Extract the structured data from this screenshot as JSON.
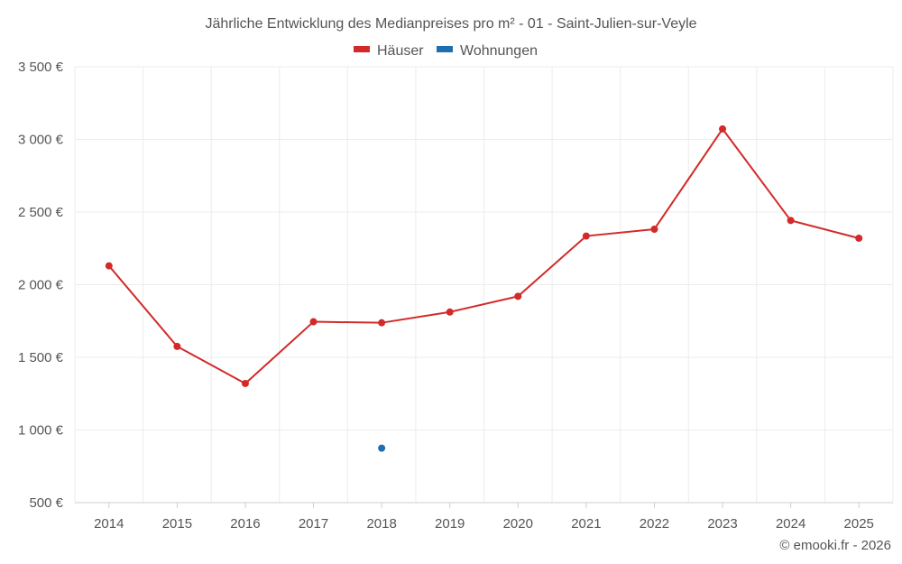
{
  "chart_data": {
    "type": "line",
    "title": "Jährliche Entwicklung des Medianpreises pro m² - 01 - Saint-Julien-sur-Veyle",
    "categories": [
      "2014",
      "2015",
      "2016",
      "2017",
      "2018",
      "2019",
      "2020",
      "2021",
      "2022",
      "2023",
      "2024",
      "2025"
    ],
    "series": [
      {
        "name": "Häuser",
        "color": "#d22a2a",
        "values": [
          2130,
          1575,
          1320,
          1745,
          1738,
          1812,
          1920,
          2335,
          2382,
          3072,
          2442,
          2320
        ]
      },
      {
        "name": "Wohnungen",
        "color": "#1f6fb0",
        "values": [
          null,
          null,
          null,
          null,
          875,
          null,
          null,
          null,
          null,
          null,
          null,
          null
        ]
      }
    ],
    "y_ticks": [
      500,
      1000,
      1500,
      2000,
      2500,
      3000,
      3500
    ],
    "y_tick_labels": [
      "500 €",
      "1 000 €",
      "1 500 €",
      "2 000 €",
      "2 500 €",
      "3 000 €",
      "3 500 €"
    ],
    "ylim": [
      500,
      3500
    ],
    "xlabel": "",
    "ylabel": "",
    "grid": true,
    "legend_position": "top-center"
  },
  "credit": "© emooki.fr - 2026"
}
